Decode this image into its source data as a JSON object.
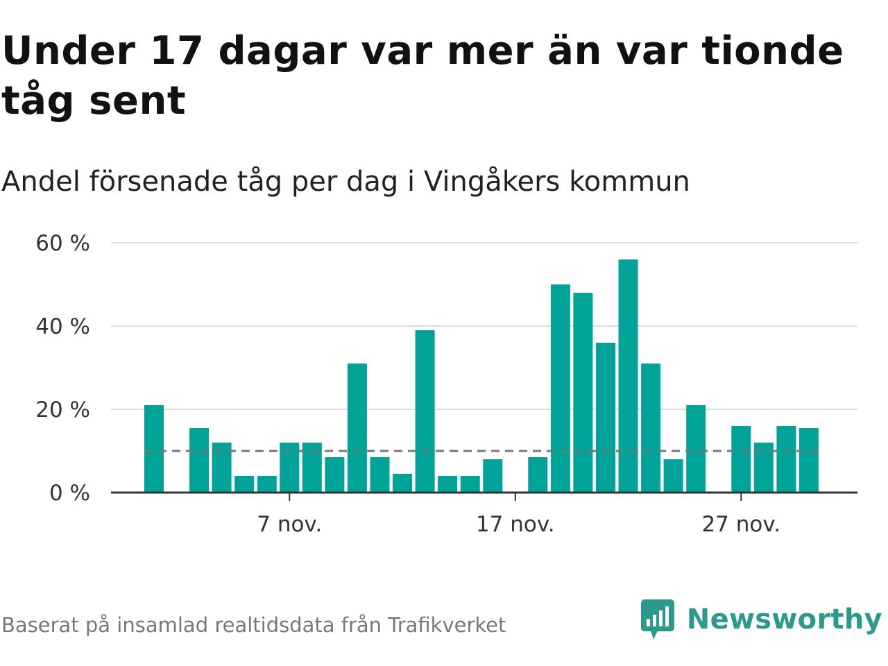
{
  "title": "Under 17 dagar var mer än var tionde tåg sent",
  "subtitle": "Andel försenade tåg per dag i Vingåkers kommun",
  "footer": "Baserat på insamlad realtidsdata från Trafikverket",
  "brand": {
    "name": "Newsworthy",
    "color": "#2b9a8d"
  },
  "colors": {
    "bar": "#00a398",
    "reference_line": "#777777",
    "grid": "#dddddd",
    "axis": "#333333"
  },
  "chart_data": {
    "type": "bar",
    "title": "Andel försenade tåg per dag i Vingåkers kommun",
    "xlabel": "",
    "ylabel": "",
    "ylim": [
      0,
      60
    ],
    "y_ticks": [
      0,
      20,
      40,
      60
    ],
    "y_tick_labels": [
      "0 %",
      "20 %",
      "40 %",
      "60 %"
    ],
    "categories": [
      "1 nov.",
      "2 nov.",
      "3 nov.",
      "4 nov.",
      "5 nov.",
      "6 nov.",
      "7 nov.",
      "8 nov.",
      "9 nov.",
      "10 nov.",
      "11 nov.",
      "12 nov.",
      "13 nov.",
      "14 nov.",
      "15 nov.",
      "16 nov.",
      "17 nov.",
      "18 nov.",
      "19 nov.",
      "20 nov.",
      "21 nov.",
      "22 nov.",
      "23 nov.",
      "24 nov.",
      "25 nov.",
      "26 nov.",
      "27 nov.",
      "28 nov.",
      "29 nov.",
      "30 nov."
    ],
    "values": [
      21,
      null,
      15.5,
      12,
      4,
      4,
      12,
      12,
      8.5,
      31,
      8.5,
      4.5,
      39,
      4,
      4,
      8,
      null,
      8.5,
      50,
      48,
      36,
      56,
      31,
      8,
      21,
      null,
      16,
      12,
      16,
      15.5
    ],
    "x_tick_labels": [
      {
        "category": "7 nov.",
        "label": "7 nov."
      },
      {
        "category": "17 nov.",
        "label": "17 nov."
      },
      {
        "category": "27 nov.",
        "label": "27 nov."
      }
    ],
    "reference_line": {
      "value": 10,
      "style": "dashed"
    },
    "grid": true,
    "legend": "none"
  }
}
